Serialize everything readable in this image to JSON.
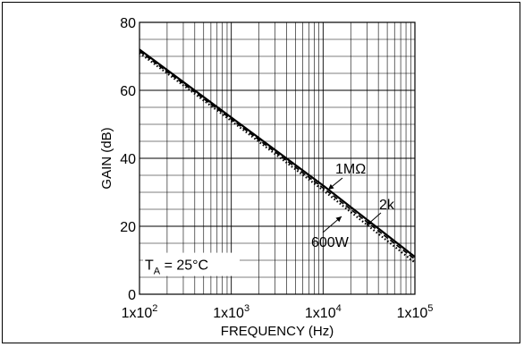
{
  "chart_data": {
    "type": "line",
    "xlabel": "FREQUENCY (Hz)",
    "ylabel": "GAIN (dB)",
    "x_scale": "log",
    "xlim": [
      100,
      100000
    ],
    "ylim": [
      0,
      80
    ],
    "x_ticks": [
      {
        "value": 100,
        "base": "1x10",
        "exp": "2"
      },
      {
        "value": 1000,
        "base": "1x10",
        "exp": "3"
      },
      {
        "value": 10000,
        "base": "1x10",
        "exp": "4"
      },
      {
        "value": 100000,
        "base": "1x10",
        "exp": "5"
      }
    ],
    "y_ticks": [
      0,
      20,
      40,
      60,
      80
    ],
    "grid": true,
    "condition": {
      "main": "T",
      "sub": "A",
      "rest": " = 25°C"
    },
    "series": [
      {
        "name": "1MΩ",
        "style": "solid",
        "color": "#000000",
        "x": [
          100,
          1000,
          10000,
          100000
        ],
        "y": [
          72,
          52,
          32,
          11
        ]
      },
      {
        "name": "2k",
        "style": "dashed",
        "color": "#000000",
        "x": [
          100,
          1000,
          10000,
          100000
        ],
        "y": [
          71.5,
          51.5,
          31.3,
          10.3
        ]
      },
      {
        "name": "600W",
        "style": "dotted",
        "color": "#000000",
        "x": [
          100,
          1000,
          10000,
          100000
        ],
        "y": [
          71,
          51,
          30.6,
          9.3
        ]
      }
    ]
  }
}
